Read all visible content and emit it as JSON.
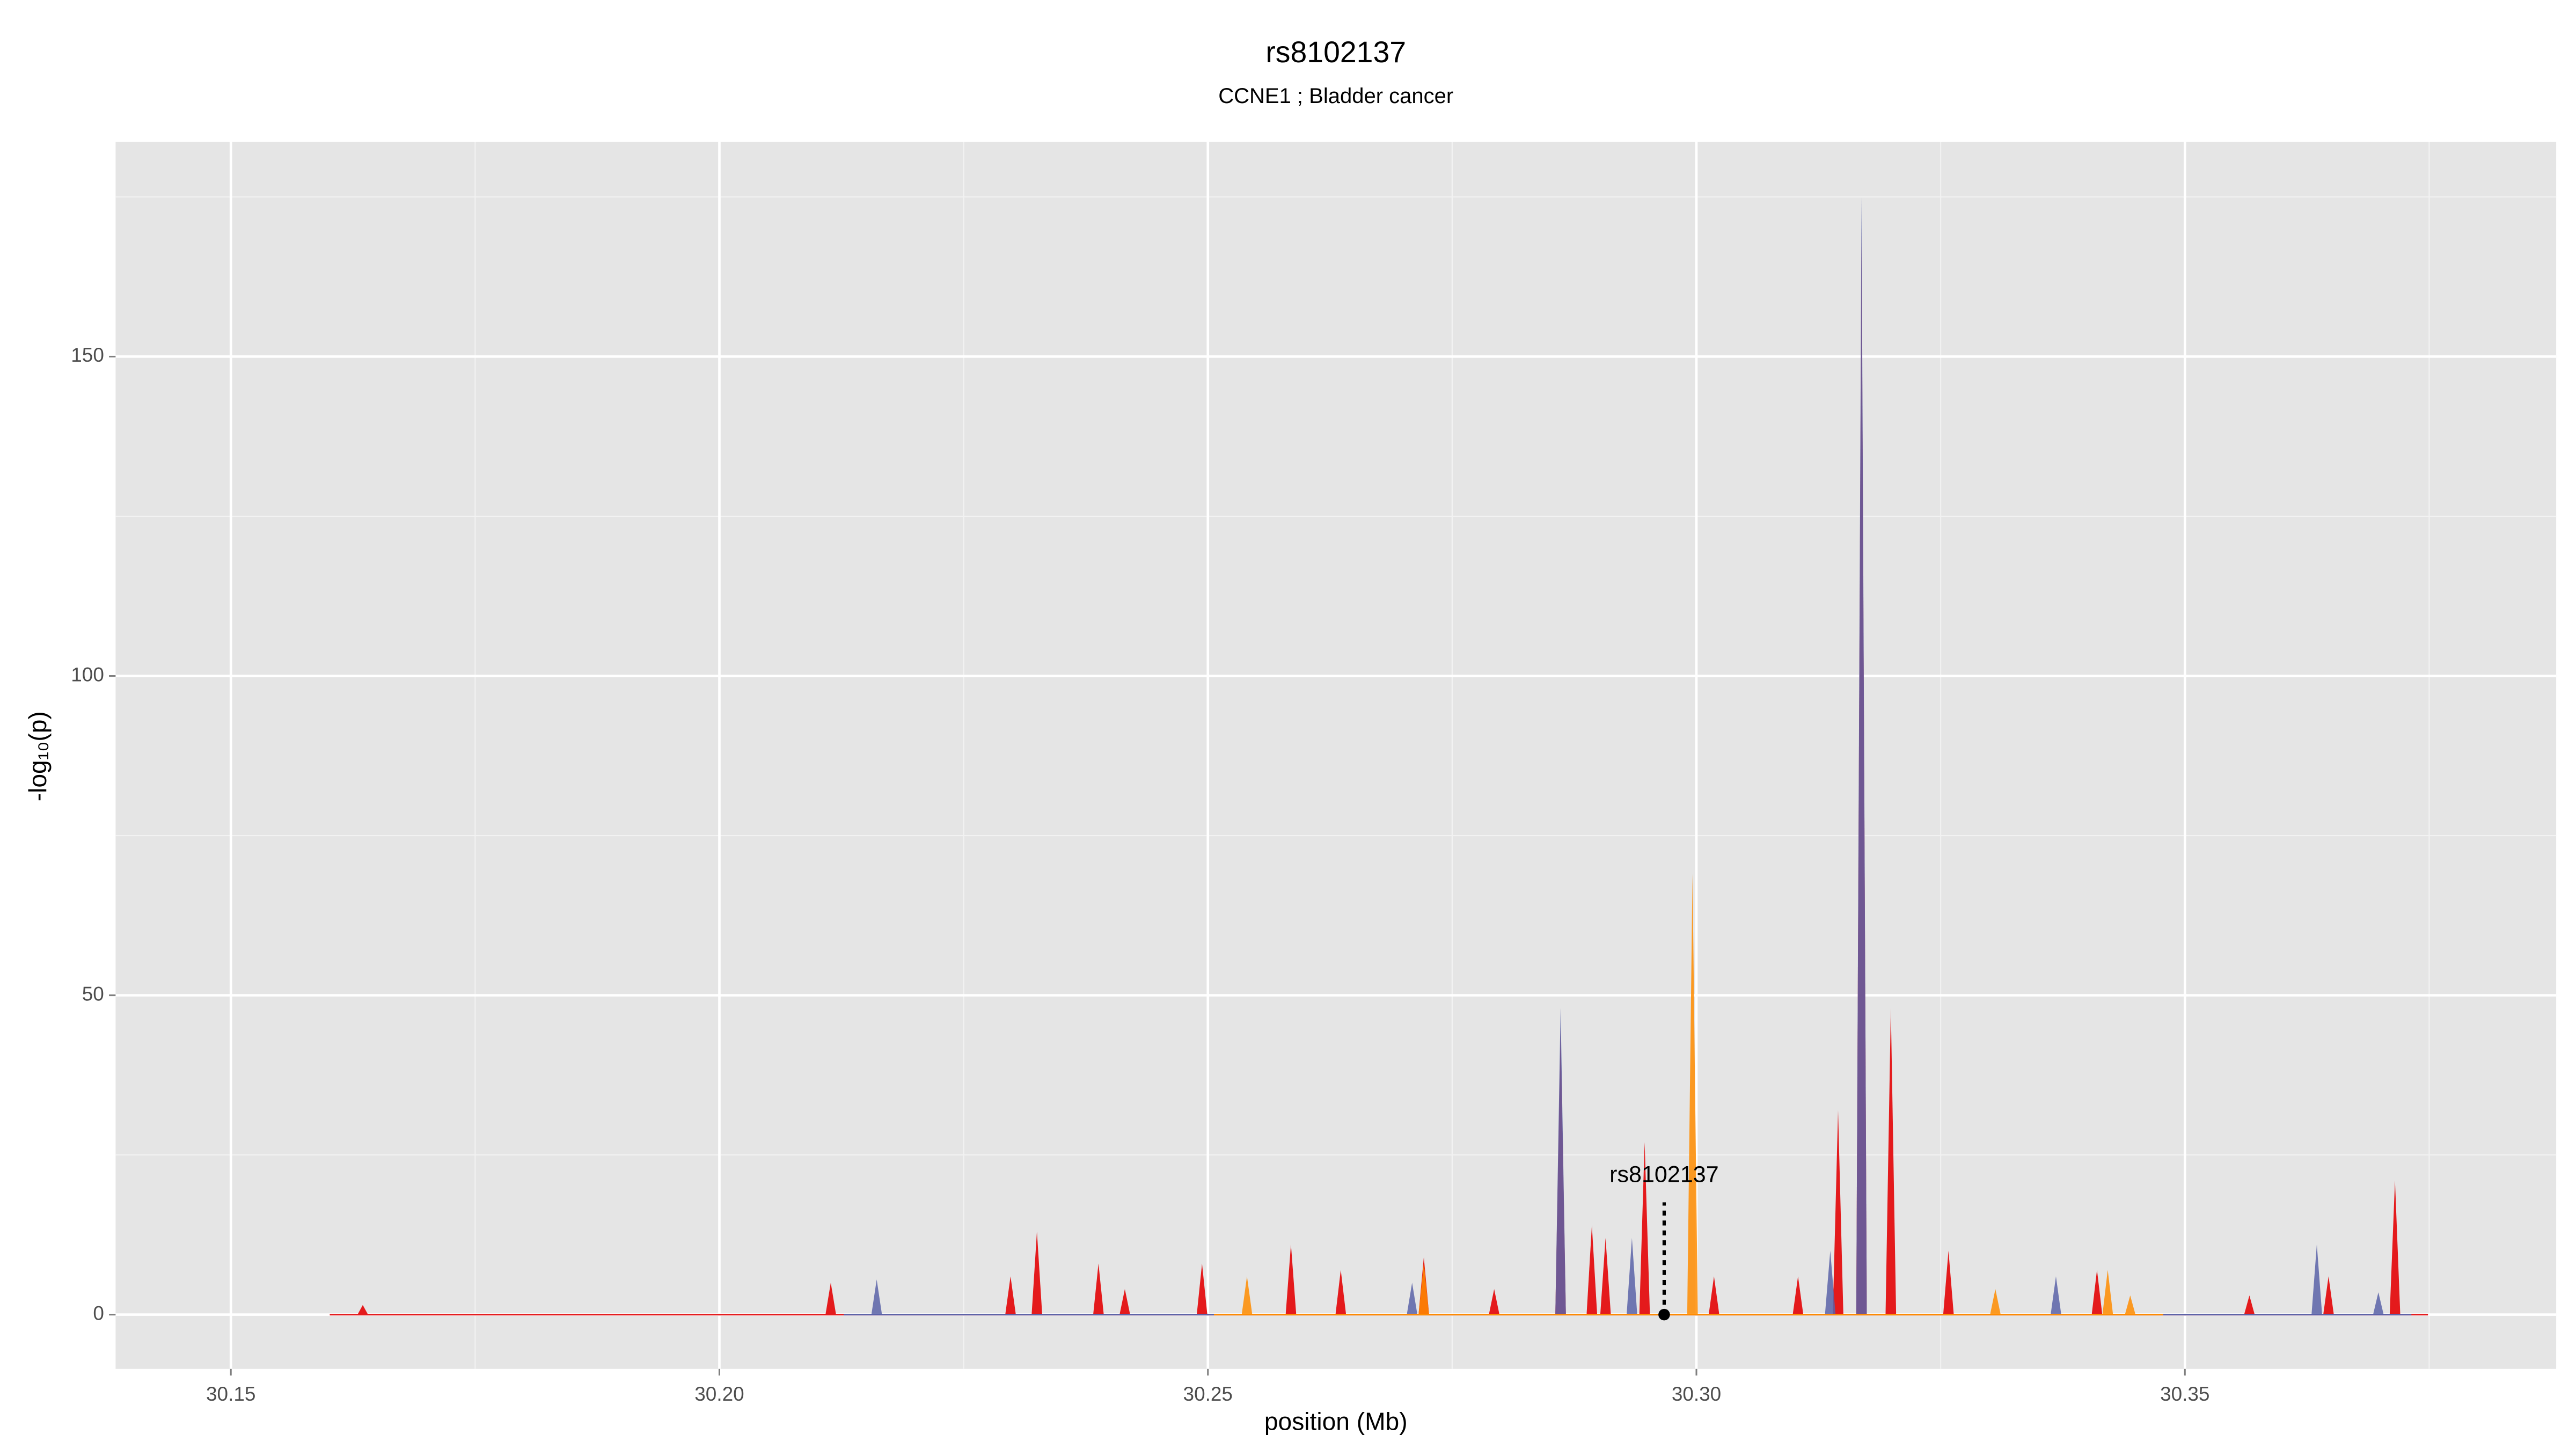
{
  "chart_data": {
    "type": "area",
    "title": "rs8102137",
    "subtitle": "CCNE1 ; Bladder cancer",
    "xlabel": "position (Mb)",
    "ylabel": "-log₁₀(p)",
    "xlim": [
      30.1382,
      30.388
    ],
    "ylim": [
      -8.5,
      183.6
    ],
    "xticks": [
      30.15,
      {
        "value": 30.2,
        "label": "30.20"
      },
      30.25,
      {
        "value": 30.3,
        "label": "30.30"
      },
      30.35
    ],
    "xminor": [
      30.175,
      30.225,
      30.275,
      30.325,
      30.375
    ],
    "yticks": [
      0,
      50,
      100,
      150
    ],
    "yminor": [
      25,
      75,
      125,
      175
    ],
    "grid": true,
    "series": [
      {
        "name": "red",
        "color": "#e41a1c",
        "x": [
          30.1635,
          30.2114,
          30.2298,
          30.2325,
          30.2388,
          30.2415,
          30.2494,
          30.2585,
          30.2636,
          30.2721,
          30.2793,
          30.2861,
          30.2893,
          30.2907,
          30.2947,
          30.3018,
          30.3104,
          30.3145,
          30.3169,
          30.3199,
          30.3258,
          30.341,
          30.3566,
          30.3647,
          30.3715
        ],
        "values": [
          1.5,
          5,
          6,
          13,
          8,
          4,
          8,
          11,
          7,
          9,
          4,
          45,
          14,
          12,
          27,
          6,
          6,
          32,
          170,
          48,
          10,
          7,
          3,
          6,
          21
        ]
      },
      {
        "name": "blue",
        "color": "#5b63a8",
        "x": [
          30.2161,
          30.2709,
          30.2861,
          30.2934,
          30.3137,
          30.3169,
          30.3368,
          30.3635,
          30.3698
        ],
        "values": [
          5.5,
          5,
          48,
          12,
          10,
          175,
          6,
          11,
          3.5
        ]
      },
      {
        "name": "orange",
        "color": "#ff8c00",
        "x": [
          30.254,
          30.2721,
          30.2996,
          30.3306,
          30.3421,
          30.3444
        ],
        "values": [
          6,
          8,
          69,
          4,
          7,
          3
        ]
      }
    ],
    "annotation": {
      "text": "rs8102137",
      "x": 30.2967,
      "y": 0
    }
  }
}
